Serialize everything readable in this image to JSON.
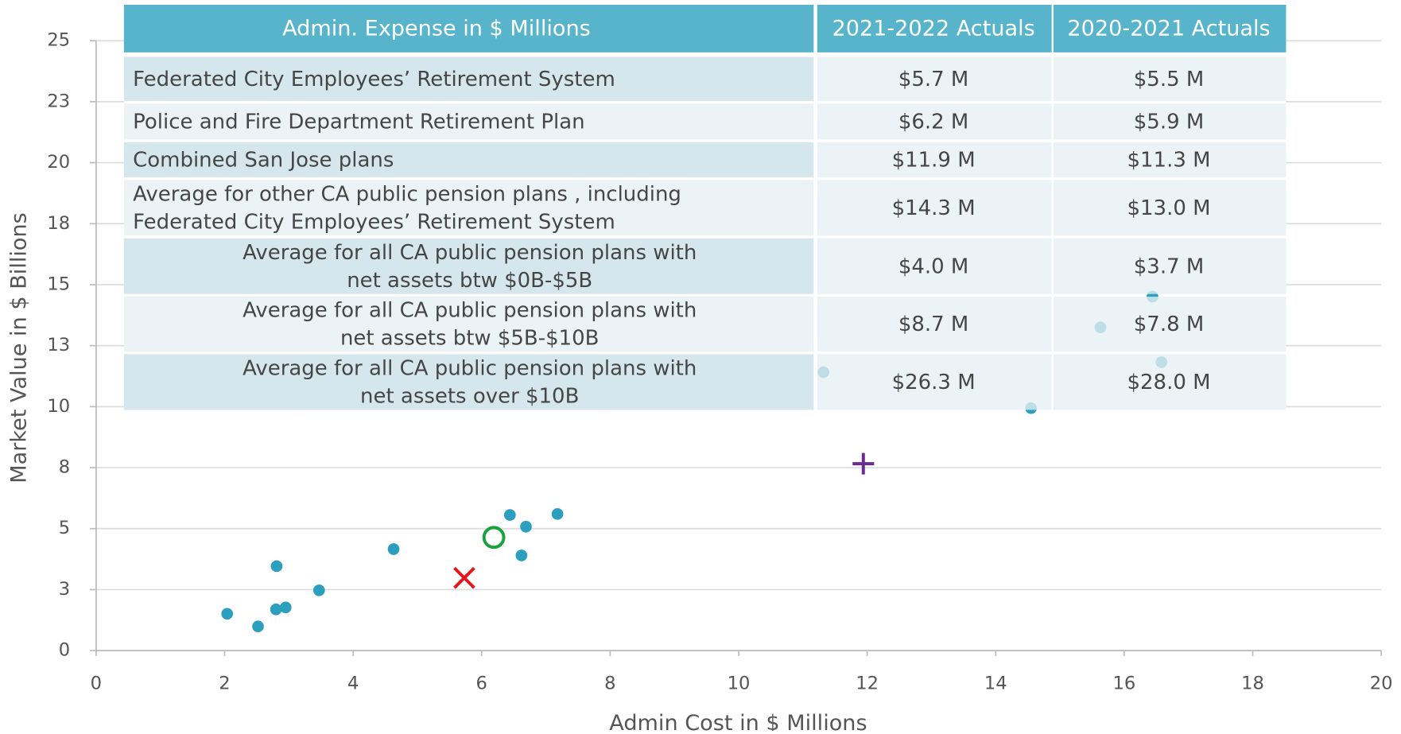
{
  "chart_data": {
    "type": "scatter",
    "xlabel": "Admin Cost in $ Millions",
    "ylabel": "Market Value in $ Billions",
    "xlim": [
      0,
      20
    ],
    "xticks": [
      0,
      2,
      4,
      6,
      8,
      10,
      12,
      14,
      16,
      18,
      20
    ],
    "ylim": [
      0,
      25
    ],
    "yticks": [
      0,
      {
        "value": 2.5,
        "label": "3"
      },
      5,
      {
        "value": 7.5,
        "label": "8"
      },
      10,
      {
        "value": 12.5,
        "label": "13"
      },
      15,
      {
        "value": 17.5,
        "label": "18"
      },
      20,
      {
        "value": 22.5,
        "label": "23"
      },
      25
    ],
    "grid": true,
    "series": [
      {
        "color": "#2b9fbd",
        "marker": "dot",
        "x": [
          2.04,
          2.52,
          2.8,
          2.95,
          2.81,
          3.47,
          4.63,
          6.44,
          6.69,
          6.62,
          7.18,
          11.32,
          14.55,
          15.63,
          16.44,
          16.58
        ],
        "values": [
          1.51,
          0.99,
          1.69,
          1.77,
          3.46,
          2.47,
          4.16,
          5.56,
          5.08,
          3.9,
          5.6,
          11.41,
          9.94,
          13.25,
          14.51,
          11.82
        ]
      },
      {
        "color": "#e8141c",
        "marker": "x",
        "x": [
          5.73
        ],
        "values": [
          2.98
        ]
      },
      {
        "color": "#1aa33c",
        "marker": "ring",
        "x": [
          6.19
        ],
        "values": [
          4.64
        ]
      },
      {
        "color": "#6a2c91",
        "marker": "plus",
        "x": [
          11.94
        ],
        "values": [
          7.66
        ]
      }
    ]
  },
  "table": {
    "header": [
      "Admin. Expense in $ Millions",
      "2021-2022 Actuals",
      "2020-2021 Actuals"
    ],
    "rows": [
      [
        [
          "Federated City Employees’ Retirement System"
        ],
        "$5.7 M",
        "$5.5 M"
      ],
      [
        [
          "Police and Fire Department Retirement Plan"
        ],
        "$6.2 M",
        "$5.9 M"
      ],
      [
        [
          "Combined San Jose plans"
        ],
        "$11.9 M",
        "$11.3 M"
      ],
      [
        [
          "Average for other CA public pension plans , including",
          "Federated City Employees’ Retirement System"
        ],
        "$14.3 M",
        "$13.0 M"
      ],
      [
        [
          "Average for all CA public pension plans with",
          "net assets btw $0B-$5B"
        ],
        "$4.0 M",
        "$3.7 M"
      ],
      [
        [
          "Average for all CA public pension plans with",
          "net assets btw $5B-$10B"
        ],
        "$8.7 M",
        "$7.8 M"
      ],
      [
        [
          "Average for all CA public pension plans with",
          "net assets over $10B"
        ],
        "$26.3 M",
        "$28.0 M"
      ]
    ]
  }
}
